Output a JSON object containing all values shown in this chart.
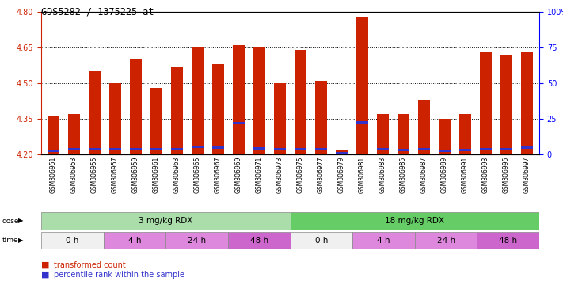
{
  "title": "GDS5282 / 1375225_at",
  "samples": [
    "GSM306951",
    "GSM306953",
    "GSM306955",
    "GSM306957",
    "GSM306959",
    "GSM306961",
    "GSM306963",
    "GSM306965",
    "GSM306967",
    "GSM306969",
    "GSM306971",
    "GSM306973",
    "GSM306975",
    "GSM306977",
    "GSM306979",
    "GSM306981",
    "GSM306983",
    "GSM306985",
    "GSM306987",
    "GSM306989",
    "GSM306991",
    "GSM306993",
    "GSM306995",
    "GSM306997"
  ],
  "bar_heights": [
    4.36,
    4.37,
    4.55,
    4.5,
    4.6,
    4.48,
    4.57,
    4.65,
    4.58,
    4.66,
    4.65,
    4.5,
    4.64,
    4.51,
    4.22,
    4.78,
    4.37,
    4.37,
    4.43,
    4.35,
    4.37,
    4.63,
    4.62,
    4.63
  ],
  "blue_positions": [
    4.215,
    4.222,
    4.222,
    4.223,
    4.222,
    4.222,
    4.222,
    4.232,
    4.23,
    4.332,
    4.225,
    4.222,
    4.222,
    4.222,
    4.205,
    4.335,
    4.222,
    4.22,
    4.222,
    4.215,
    4.22,
    4.222,
    4.222,
    4.23
  ],
  "ymin": 4.2,
  "ymax": 4.8,
  "yticks": [
    4.2,
    4.35,
    4.5,
    4.65,
    4.8
  ],
  "right_yticks": [
    0,
    25,
    50,
    75,
    100
  ],
  "bar_color": "#cc2200",
  "blue_color": "#3333cc",
  "dose_ranges": [
    {
      "label": "3 mg/kg RDX",
      "start": 0,
      "end": 12,
      "color": "#aaddaa"
    },
    {
      "label": "18 mg/kg RDX",
      "start": 12,
      "end": 24,
      "color": "#66cc66"
    }
  ],
  "time_ranges": [
    {
      "label": "0 h",
      "start": 0,
      "end": 3,
      "color": "#f0f0f0"
    },
    {
      "label": "4 h",
      "start": 3,
      "end": 6,
      "color": "#dd88dd"
    },
    {
      "label": "24 h",
      "start": 6,
      "end": 9,
      "color": "#dd88dd"
    },
    {
      "label": "48 h",
      "start": 9,
      "end": 12,
      "color": "#cc66cc"
    },
    {
      "label": "0 h",
      "start": 12,
      "end": 15,
      "color": "#f0f0f0"
    },
    {
      "label": "4 h",
      "start": 15,
      "end": 18,
      "color": "#dd88dd"
    },
    {
      "label": "24 h",
      "start": 18,
      "end": 21,
      "color": "#dd88dd"
    },
    {
      "label": "48 h",
      "start": 21,
      "end": 24,
      "color": "#cc66cc"
    }
  ]
}
